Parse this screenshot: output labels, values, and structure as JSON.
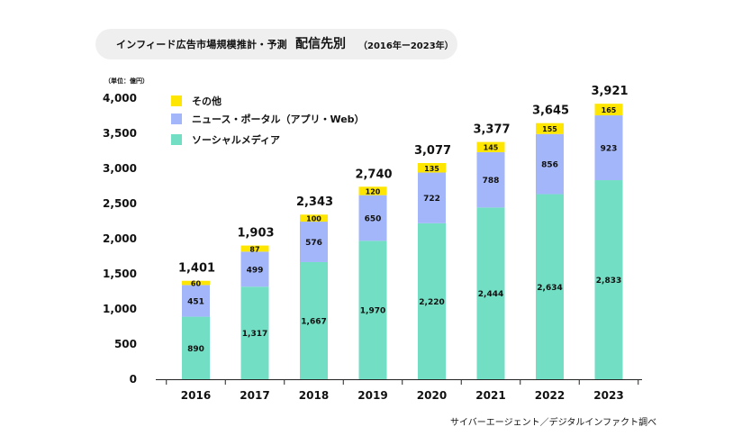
{
  "header": {
    "title": "インフィード広告市場規模推計・予測",
    "subtitle": "配信先別",
    "range": "（2016年ー2023年）"
  },
  "unit_label": "（単位：億円）",
  "source": "サイバーエージェント／デジタルインファクト調べ",
  "colors": {
    "social": "#72dfc4",
    "news": "#a3b6f9",
    "other": "#ffe600"
  },
  "chart_data": {
    "type": "bar",
    "stacked": true,
    "categories": [
      "2016",
      "2017",
      "2018",
      "2019",
      "2020",
      "2021",
      "2022",
      "2023"
    ],
    "series": [
      {
        "name": "ソーシャルメディア",
        "values": [
          890,
          1317,
          1667,
          1970,
          2220,
          2444,
          2634,
          2833
        ],
        "value_labels": [
          "890",
          "1,317",
          "1,667",
          "1,970",
          "2,220",
          "2,444",
          "2,634",
          "2,833"
        ]
      },
      {
        "name": "ニュース・ポータル（アプリ・Web）",
        "values": [
          451,
          499,
          576,
          650,
          722,
          788,
          856,
          923
        ],
        "value_labels": [
          "451",
          "499",
          "576",
          "650",
          "722",
          "788",
          "856",
          "923"
        ]
      },
      {
        "name": "その他",
        "values": [
          60,
          87,
          100,
          120,
          135,
          145,
          155,
          165
        ],
        "value_labels": [
          "60",
          "87",
          "100",
          "120",
          "135",
          "145",
          "155",
          "165"
        ]
      }
    ],
    "totals": [
      1401,
      1903,
      2343,
      2740,
      3077,
      3377,
      3645,
      3921
    ],
    "total_labels": [
      "1,401",
      "1,903",
      "2,343",
      "2,740",
      "3,077",
      "3,377",
      "3,645",
      "3,921"
    ],
    "yticks": [
      0,
      500,
      1000,
      1500,
      2000,
      2500,
      3000,
      3500,
      4000
    ],
    "ytick_labels": [
      "0",
      "500",
      "1,000",
      "1,500",
      "2,000",
      "2,500",
      "3,000",
      "3,500",
      "4,000"
    ],
    "ylim": [
      0,
      4000
    ],
    "legend_position": "top-left",
    "grid": false
  }
}
